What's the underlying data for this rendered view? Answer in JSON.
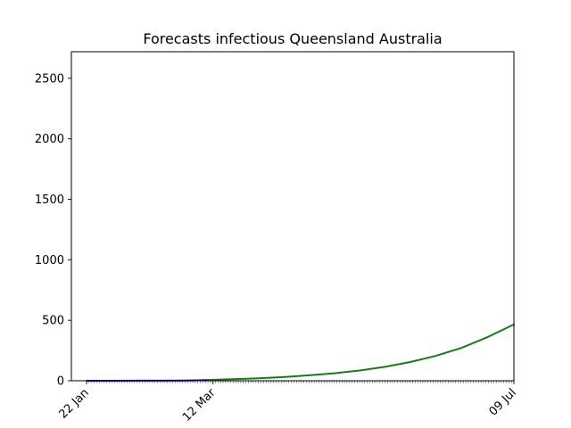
{
  "chart_data": {
    "type": "line",
    "title": "Forecasts infectious Queensland Australia",
    "xlabel": "",
    "ylabel": "",
    "x_range": [
      "2020-01-16",
      "2020-07-09"
    ],
    "ylim": [
      0,
      2720
    ],
    "x_tick_labels": [
      {
        "date": "2020-01-22",
        "label": "22 Jan"
      },
      {
        "date": "2020-03-12",
        "label": "12 Mar"
      },
      {
        "date": "2020-07-09",
        "label": "09 Jul"
      }
    ],
    "y_ticks": [
      0,
      500,
      1000,
      1500,
      2000,
      2500
    ],
    "minor_x_ticks": "daily",
    "grid": false,
    "legend": "none",
    "series": [
      {
        "color": "#0000bb",
        "x": [
          "2020-01-22",
          "2020-02-01",
          "2020-02-11",
          "2020-02-21",
          "2020-03-01",
          "2020-03-06",
          "2020-03-10",
          "2020-03-12"
        ],
        "values": [
          0,
          0,
          1,
          1,
          2,
          4,
          5,
          6
        ]
      },
      {
        "color": "#1a7a1a",
        "x": [
          "2020-03-10",
          "2020-03-20",
          "2020-03-30",
          "2020-04-09",
          "2020-04-19",
          "2020-04-29",
          "2020-05-09",
          "2020-05-19",
          "2020-05-29",
          "2020-06-08",
          "2020-06-18",
          "2020-06-28",
          "2020-07-09"
        ],
        "values": [
          7,
          13,
          20,
          30,
          45,
          62,
          85,
          115,
          155,
          205,
          270,
          355,
          465
        ]
      }
    ]
  }
}
